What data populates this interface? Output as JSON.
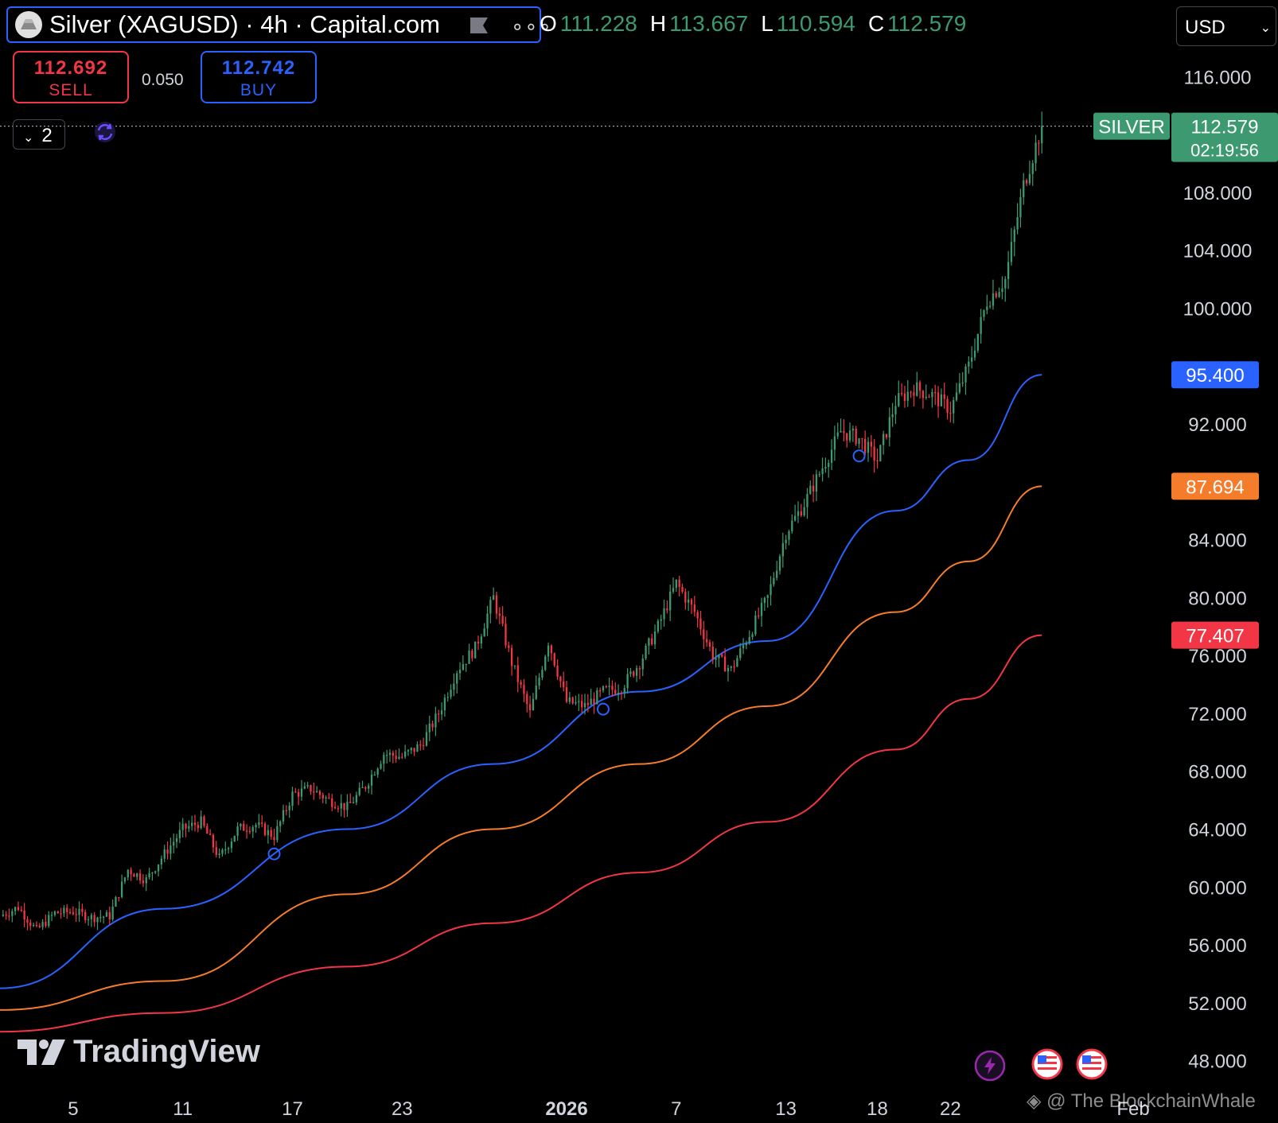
{
  "header": {
    "symbol_title": "Silver (XAGUSD) · 4h · Capital.com",
    "ohlc": [
      {
        "key": "O",
        "value": "111.228"
      },
      {
        "key": "H",
        "value": "113.667"
      },
      {
        "key": "L",
        "value": "110.594"
      },
      {
        "key": "C",
        "value": "112.579"
      }
    ],
    "currency": "USD",
    "more_label": "∘∘∘"
  },
  "trade": {
    "sell_price": "112.692",
    "sell_label": "SELL",
    "buy_price": "112.742",
    "buy_label": "BUY",
    "spread": "0.050"
  },
  "indicators_collapse_count": "2",
  "branding": {
    "logo_text": "TradingView",
    "watermark": "@ The BlockchainWhale"
  },
  "colors": {
    "up": "#3d9970",
    "down": "#f23645",
    "ma_blue": "#2962ff",
    "ma_orange": "#f57c2a",
    "ma_red": "#f23645",
    "accent": "#2962ff"
  },
  "chart_data": {
    "type": "candlestick",
    "timeframe": "4h",
    "ylim": [
      46,
      118
    ],
    "y_ticks": [
      "116.000",
      "108.000",
      "104.000",
      "100.000",
      "92.000",
      "84.000",
      "80.000",
      "76.000",
      "72.000",
      "68.000",
      "64.000",
      "60.000",
      "56.000",
      "52.000",
      "48.000"
    ],
    "x_ticks": [
      {
        "label": "5",
        "date": "2025-12-05"
      },
      {
        "label": "11",
        "date": "2025-12-11"
      },
      {
        "label": "17",
        "date": "2025-12-17"
      },
      {
        "label": "23",
        "date": "2025-12-23"
      },
      {
        "label": "2026",
        "date": "2026-01-01",
        "bold": true
      },
      {
        "label": "7",
        "date": "2026-01-07"
      },
      {
        "label": "13",
        "date": "2026-01-13"
      },
      {
        "label": "18",
        "date": "2026-01-18"
      },
      {
        "label": "22",
        "date": "2026-01-22"
      },
      {
        "label": "Feb",
        "date": "2026-02-01"
      }
    ],
    "x_start": "2025-12-01",
    "x_end": "2026-02-03",
    "price_path": [
      [
        "2025-12-01",
        58.0
      ],
      [
        "2025-12-02",
        58.6
      ],
      [
        "2025-12-03",
        57.0
      ],
      [
        "2025-12-04",
        58.2
      ],
      [
        "2025-12-05",
        58.3
      ],
      [
        "2025-12-06",
        57.9
      ],
      [
        "2025-12-07",
        58.0
      ],
      [
        "2025-12-08",
        61.2
      ],
      [
        "2025-12-09",
        60.5
      ],
      [
        "2025-12-10",
        62.3
      ],
      [
        "2025-12-11",
        64.0
      ],
      [
        "2025-12-12",
        64.5
      ],
      [
        "2025-12-13",
        62.0
      ],
      [
        "2025-12-14",
        64.0
      ],
      [
        "2025-12-15",
        64.3
      ],
      [
        "2025-12-16",
        63.5
      ],
      [
        "2025-12-17",
        66.4
      ],
      [
        "2025-12-18",
        66.8
      ],
      [
        "2025-12-19",
        66.0
      ],
      [
        "2025-12-20",
        65.5
      ],
      [
        "2025-12-21",
        67.0
      ],
      [
        "2025-12-22",
        69.2
      ],
      [
        "2025-12-23",
        69.0
      ],
      [
        "2025-12-24",
        69.8
      ],
      [
        "2025-12-25",
        72.0
      ],
      [
        "2025-12-26",
        75.0
      ],
      [
        "2025-12-27",
        76.5
      ],
      [
        "2025-12-28",
        80.0
      ],
      [
        "2025-12-29",
        75.5
      ],
      [
        "2025-12-30",
        72.0
      ],
      [
        "2025-12-31",
        77.0
      ],
      [
        "2026-01-01",
        72.8
      ],
      [
        "2026-01-02",
        72.5
      ],
      [
        "2026-01-03",
        73.5
      ],
      [
        "2026-01-04",
        73.8
      ],
      [
        "2026-01-05",
        75.5
      ],
      [
        "2026-01-06",
        78.0
      ],
      [
        "2026-01-07",
        81.0
      ],
      [
        "2026-01-08",
        79.0
      ],
      [
        "2026-01-09",
        76.0
      ],
      [
        "2026-01-10",
        75.0
      ],
      [
        "2026-01-11",
        77.5
      ],
      [
        "2026-01-12",
        80.0
      ],
      [
        "2026-01-13",
        84.5
      ],
      [
        "2026-01-14",
        86.5
      ],
      [
        "2026-01-15",
        89.0
      ],
      [
        "2026-01-16",
        91.5
      ],
      [
        "2026-01-17",
        91.0
      ],
      [
        "2026-01-18",
        89.5
      ],
      [
        "2026-01-19",
        93.5
      ],
      [
        "2026-01-20",
        94.5
      ],
      [
        "2026-01-21",
        94.0
      ],
      [
        "2026-01-22",
        93.0
      ],
      [
        "2026-01-23",
        96.0
      ],
      [
        "2026-01-24",
        100.5
      ],
      [
        "2026-01-25",
        102.0
      ],
      [
        "2026-01-26",
        108.5
      ],
      [
        "2026-01-27",
        112.579
      ]
    ],
    "moving_averages": [
      {
        "color": "blue",
        "last_value": "95.400",
        "path": [
          [
            "2025-12-01",
            53.0
          ],
          [
            "2025-12-10",
            58.5
          ],
          [
            "2025-12-20",
            64.0
          ],
          [
            "2025-12-28",
            68.5
          ],
          [
            "2026-01-05",
            73.5
          ],
          [
            "2026-01-12",
            77.0
          ],
          [
            "2026-01-19",
            86.0
          ],
          [
            "2026-01-23",
            89.5
          ],
          [
            "2026-01-27",
            95.4
          ]
        ]
      },
      {
        "color": "orange",
        "last_value": "87.694",
        "path": [
          [
            "2025-12-01",
            51.5
          ],
          [
            "2025-12-10",
            53.5
          ],
          [
            "2025-12-20",
            59.5
          ],
          [
            "2025-12-28",
            64.0
          ],
          [
            "2026-01-05",
            68.5
          ],
          [
            "2026-01-12",
            72.5
          ],
          [
            "2026-01-19",
            79.0
          ],
          [
            "2026-01-23",
            82.5
          ],
          [
            "2026-01-27",
            87.694
          ]
        ]
      },
      {
        "color": "red",
        "last_value": "77.407",
        "path": [
          [
            "2025-12-01",
            50.0
          ],
          [
            "2025-12-10",
            51.3
          ],
          [
            "2025-12-20",
            54.5
          ],
          [
            "2025-12-28",
            57.5
          ],
          [
            "2026-01-05",
            61.0
          ],
          [
            "2026-01-12",
            64.5
          ],
          [
            "2026-01-19",
            69.5
          ],
          [
            "2026-01-23",
            73.0
          ],
          [
            "2026-01-27",
            77.407
          ]
        ]
      }
    ],
    "last_price": {
      "symbol": "SILVER",
      "value": "112.579",
      "countdown": "02:19:56"
    },
    "event_markers": [
      "2025-12-16",
      "2026-01-03",
      "2026-01-17"
    ]
  }
}
